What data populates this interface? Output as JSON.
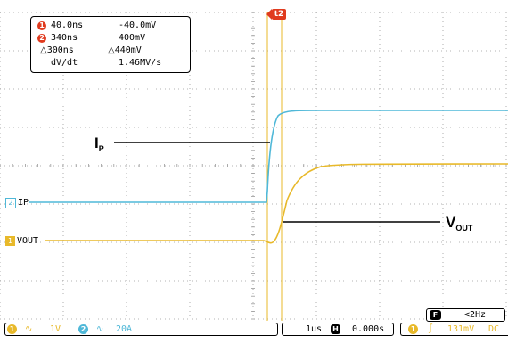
{
  "measurements": [
    {
      "cursor": "1",
      "time": "40.0ns",
      "volt": "-40.0mV"
    },
    {
      "cursor": "2",
      "time": "340ns",
      "volt": "400mV"
    }
  ],
  "delta": {
    "time": "300ns",
    "volt": "440mV",
    "symbol": "△"
  },
  "slope": {
    "label": "dV/dt",
    "value": "1.46MV/s"
  },
  "channels": {
    "ch2": {
      "num": "2",
      "label": "IP"
    },
    "ch1": {
      "num": "1",
      "label": "VOUT"
    }
  },
  "annotations": {
    "ip": {
      "main": "I",
      "sub": "P"
    },
    "vout": {
      "main": "V",
      "sub": "OUT"
    }
  },
  "trigger_marker": {
    "label": "t2"
  },
  "frequency": {
    "icon": "F",
    "value": "<2Hz"
  },
  "status": {
    "ch1": {
      "num": "1",
      "coupling": "∿",
      "scale": "1V"
    },
    "ch2": {
      "num": "2",
      "coupling": "∿",
      "scale": "20A"
    },
    "timebase": {
      "value": "1us",
      "h_icon": "H",
      "delay": "0.000s"
    },
    "trigger": {
      "num": "1",
      "slope": "∫",
      "level": "131mV",
      "coupling": "DC"
    }
  },
  "colors": {
    "ch1": "#e8b92a",
    "ch2": "#4fb8d8",
    "cursor": "#e03a1e",
    "grid": "#9a9a9a"
  }
}
